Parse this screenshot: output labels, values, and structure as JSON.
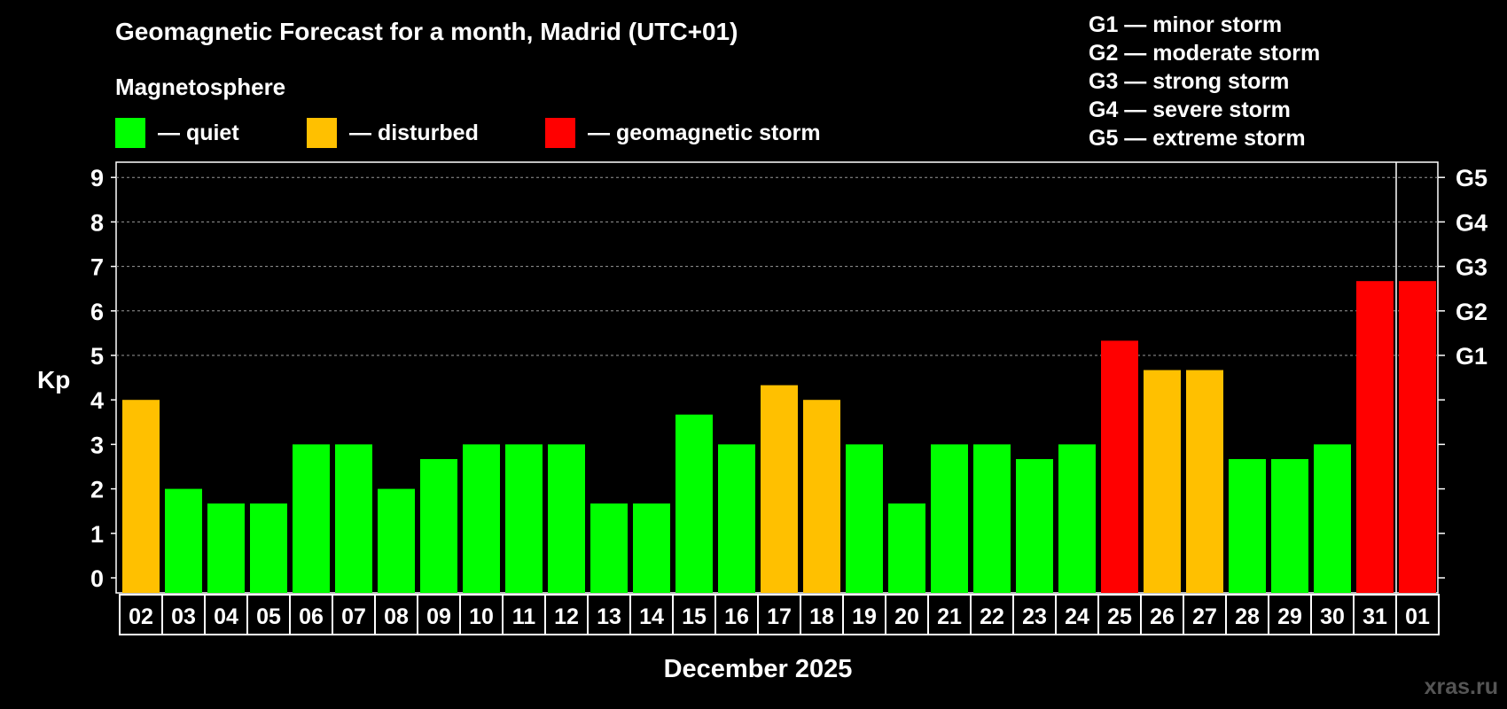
{
  "title": "Geomagnetic Forecast for a month, Madrid (UTC+01)",
  "subtitle": "Magnetosphere",
  "legend": [
    {
      "label": "— quiet",
      "color": "#00ff00"
    },
    {
      "label": "— disturbed",
      "color": "#ffc000"
    },
    {
      "label": "— geomagnetic storm",
      "color": "#ff0000"
    }
  ],
  "gscale": [
    "G1 — minor storm",
    "G2 — moderate storm",
    "G3 — strong storm",
    "G4 — severe storm",
    "G5 — extreme storm"
  ],
  "watermark": "xras.ru",
  "chart_data": {
    "type": "bar",
    "title": "Geomagnetic Forecast for a month, Madrid (UTC+01)",
    "xlabel": "December 2025",
    "ylabel": "Kp",
    "ylim": [
      0,
      9
    ],
    "yticks": [
      "0",
      "1",
      "2",
      "3",
      "4",
      "5",
      "6",
      "7",
      "8",
      "9"
    ],
    "right_axis_labels": [
      {
        "value": 5,
        "label": "G1"
      },
      {
        "value": 6,
        "label": "G2"
      },
      {
        "value": 7,
        "label": "G3"
      },
      {
        "value": 8,
        "label": "G4"
      },
      {
        "value": 9,
        "label": "G5"
      }
    ],
    "grid": "dashed horizontal",
    "categories": [
      "02",
      "03",
      "04",
      "05",
      "06",
      "07",
      "08",
      "09",
      "10",
      "11",
      "12",
      "13",
      "14",
      "15",
      "16",
      "17",
      "18",
      "19",
      "20",
      "21",
      "22",
      "23",
      "24",
      "25",
      "26",
      "27",
      "28",
      "29",
      "30",
      "31",
      "01"
    ],
    "values": [
      4,
      2,
      1.67,
      1.67,
      3,
      3,
      2,
      2.67,
      3,
      3,
      3,
      1.67,
      1.67,
      3.67,
      3,
      4.33,
      4,
      3,
      1.67,
      3,
      3,
      2.67,
      3,
      5.33,
      4.67,
      4.67,
      2.67,
      2.67,
      3,
      6.67,
      6.67
    ],
    "colors": {
      "quiet": "#00ff00",
      "disturbed": "#ffc000",
      "storm": "#ff0000"
    },
    "status": [
      "disturbed",
      "quiet",
      "quiet",
      "quiet",
      "quiet",
      "quiet",
      "quiet",
      "quiet",
      "quiet",
      "quiet",
      "quiet",
      "quiet",
      "quiet",
      "quiet",
      "quiet",
      "disturbed",
      "disturbed",
      "quiet",
      "quiet",
      "quiet",
      "quiet",
      "quiet",
      "quiet",
      "storm",
      "disturbed",
      "disturbed",
      "quiet",
      "quiet",
      "quiet",
      "storm",
      "storm"
    ]
  }
}
